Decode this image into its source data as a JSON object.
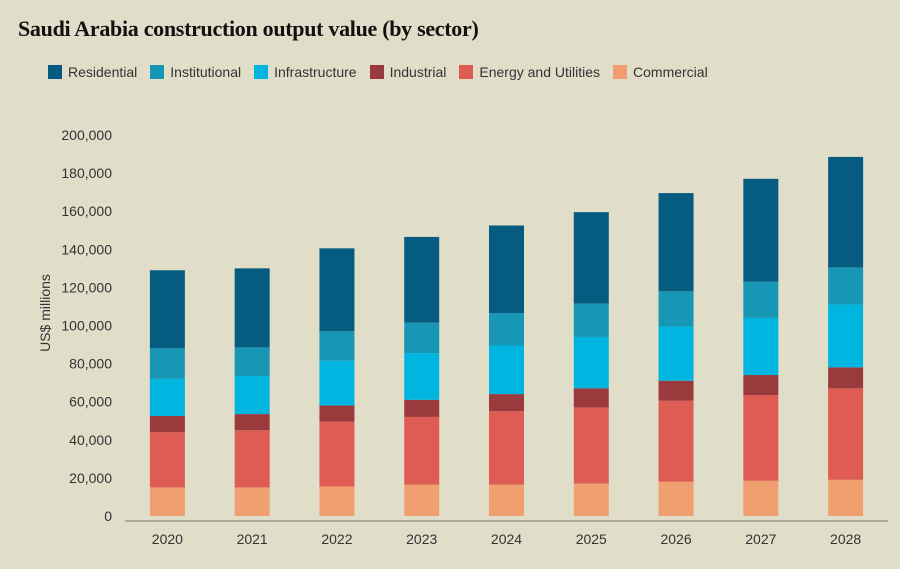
{
  "chart_data": {
    "type": "bar",
    "stacked": true,
    "title": "Saudi Arabia construction output value (by sector)",
    "xlabel": "",
    "ylabel": "US$ millions",
    "ylim": [
      0,
      200000
    ],
    "yticks": [
      0,
      20000,
      40000,
      60000,
      80000,
      100000,
      120000,
      140000,
      160000,
      180000,
      200000
    ],
    "ytick_labels": [
      "0",
      "20,000",
      "40,000",
      "60,000",
      "80,000",
      "100,000",
      "120,000",
      "140,000",
      "160,000",
      "180,000",
      "200,000"
    ],
    "categories": [
      "2020",
      "2021",
      "2022",
      "2023",
      "2024",
      "2025",
      "2026",
      "2027",
      "2028"
    ],
    "series": [
      {
        "name": "Commercial",
        "color": "#f0a070",
        "values": [
          15000,
          15000,
          15500,
          16500,
          16500,
          17000,
          18000,
          18500,
          19000
        ]
      },
      {
        "name": "Energy and Utilities",
        "color": "#df5c55",
        "values": [
          29000,
          30000,
          34000,
          35500,
          38500,
          40000,
          42500,
          45000,
          48000
        ]
      },
      {
        "name": "Industrial",
        "color": "#9b3a3d",
        "values": [
          8500,
          8500,
          8500,
          9000,
          9000,
          10000,
          10500,
          10500,
          11000
        ]
      },
      {
        "name": "Infrastructure",
        "color": "#00b5e0",
        "values": [
          19500,
          20000,
          23500,
          24500,
          25500,
          27000,
          28500,
          30000,
          33000
        ]
      },
      {
        "name": "Institutional",
        "color": "#1896b5",
        "values": [
          16000,
          15000,
          15500,
          16000,
          17000,
          17500,
          18500,
          19000,
          19500
        ]
      },
      {
        "name": "Residential",
        "color": "#065c80",
        "values": [
          41000,
          41500,
          43500,
          45000,
          46000,
          48000,
          51500,
          54000,
          58000
        ]
      }
    ],
    "legend": [
      {
        "name": "Residential",
        "color": "#065c80"
      },
      {
        "name": "Institutional",
        "color": "#1896b5"
      },
      {
        "name": "Infrastructure",
        "color": "#00b5e0"
      },
      {
        "name": "Industrial",
        "color": "#9b3a3d"
      },
      {
        "name": "Energy and Utilities",
        "color": "#df5c55"
      },
      {
        "name": "Commercial",
        "color": "#f0a070"
      }
    ],
    "legend_position": "top-left"
  }
}
